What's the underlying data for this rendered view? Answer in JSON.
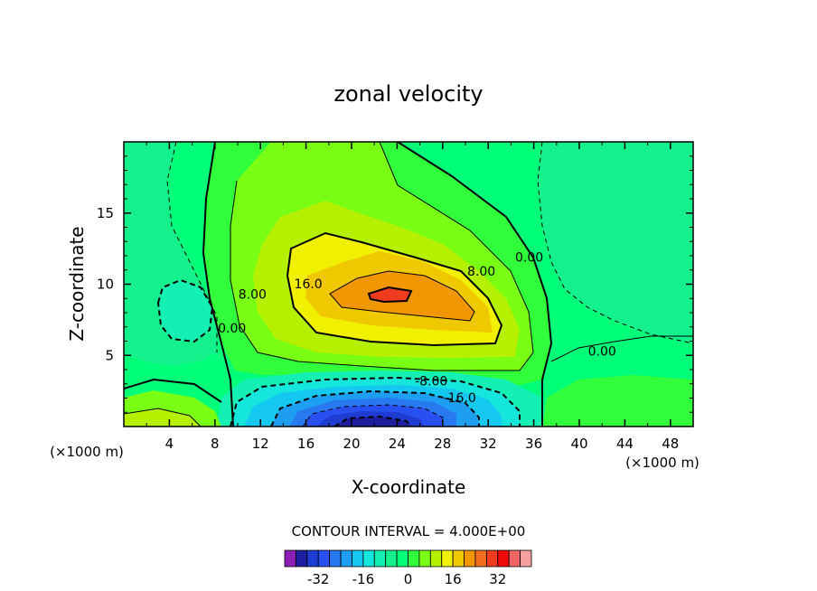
{
  "chart_data": {
    "type": "contour",
    "title": "zonal velocity",
    "xlabel": "X-coordinate",
    "ylabel": "Z-coordinate",
    "x_unit_label": "(×1000 m)",
    "xlim": [
      0,
      50
    ],
    "ylim": [
      0,
      20
    ],
    "x_ticks": [
      4,
      8,
      12,
      16,
      20,
      24,
      28,
      32,
      36,
      40,
      44,
      48
    ],
    "y_ticks": [
      5,
      10,
      15
    ],
    "contour_interval_text": "CONTOUR INTERVAL = 4.000E+00",
    "contour_interval": 4,
    "contour_labels": [
      {
        "text": "0.00",
        "x": 9.5,
        "y": 6.6
      },
      {
        "text": "8.00",
        "x": 11.3,
        "y": 9.0
      },
      {
        "text": "16.0",
        "x": 16.2,
        "y": 9.7
      },
      {
        "text": "8.00",
        "x": 31.4,
        "y": 10.6
      },
      {
        "text": "0.00",
        "x": 35.6,
        "y": 11.6
      },
      {
        "text": "0.00",
        "x": 42.0,
        "y": 5.0
      },
      {
        "text": "-8.00",
        "x": 27.0,
        "y": 2.9
      },
      {
        "text": "-16.0",
        "x": 29.5,
        "y": 1.7
      }
    ],
    "features": [
      {
        "name": "upper jet maximum",
        "x": 23,
        "z": 9.2,
        "value": 28
      },
      {
        "name": "lower reversed jet minimum",
        "x": 21,
        "z": 0.6,
        "value": -32
      },
      {
        "name": "weak negative cell",
        "x": 5,
        "z": 8.5,
        "value": -4
      }
    ],
    "colorbar": {
      "levels": [
        -40,
        -36,
        -32,
        -28,
        -24,
        -20,
        -16,
        -12,
        -8,
        -4,
        0,
        4,
        8,
        12,
        16,
        20,
        24,
        28,
        32,
        36
      ],
      "tick_labels": [
        "-32",
        "-16",
        "0",
        "16",
        "32"
      ],
      "tick_values": [
        -32,
        -16,
        0,
        16,
        32
      ],
      "colors": [
        "#8c1eb4",
        "#1e1ea0",
        "#1e3cd2",
        "#2850f0",
        "#2878f0",
        "#1e9ef0",
        "#14c8f0",
        "#14e6dc",
        "#14f0b4",
        "#14f08c",
        "#00ff78",
        "#32ff3c",
        "#78ff14",
        "#b4f000",
        "#f0f000",
        "#f0c800",
        "#f09600",
        "#f06e1e",
        "#f03c1e",
        "#f00a0a",
        "#f06464",
        "#f5a0a0"
      ]
    }
  }
}
